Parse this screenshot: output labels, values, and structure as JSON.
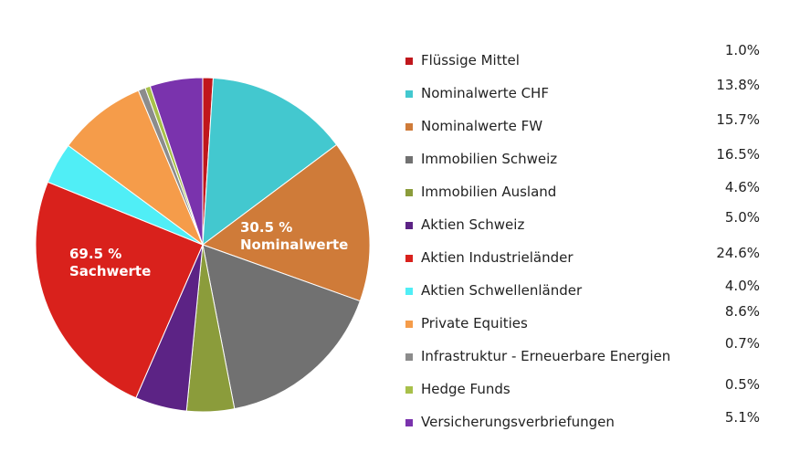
{
  "chart_data": {
    "type": "pie",
    "slices": [
      {
        "label": "Flüssige Mittel",
        "value_label": "1.0%",
        "value": 1.0,
        "color": "#c0171c"
      },
      {
        "label": "Nominalwerte CHF",
        "value_label": "13.8%",
        "value": 13.8,
        "color": "#43c8cf"
      },
      {
        "label": "Nominalwerte FW",
        "value_label": "15.7%",
        "value": 15.7,
        "color": "#cf7b39"
      },
      {
        "label": "Immobilien Schweiz",
        "value_label": "16.5%",
        "value": 16.5,
        "color": "#717171"
      },
      {
        "label": "Immobilien Ausland",
        "value_label": "4.6%",
        "value": 4.6,
        "color": "#8b9c3b"
      },
      {
        "label": "Aktien Schweiz",
        "value_label": "5.0%",
        "value": 5.0,
        "color": "#5c2385"
      },
      {
        "label": "Aktien Industrieländer",
        "value_label": "24.6%",
        "value": 24.6,
        "color": "#d9211c"
      },
      {
        "label": "Aktien Schwellenländer",
        "value_label": "4.0%",
        "value": 4.0,
        "color": "#50eef6"
      },
      {
        "label": "Private Equities",
        "value_label": "8.6%",
        "value": 8.6,
        "color": "#f59c4a"
      },
      {
        "label": "Infrastruktur - Erneuerbare Energien",
        "value_label": "0.7%",
        "value": 0.7,
        "color": "#8c8c8c"
      },
      {
        "label": "Hedge Funds",
        "value_label": "0.5%",
        "value": 0.5,
        "color": "#a8c04a"
      },
      {
        "label": "Versicherungsverbriefungen",
        "value_label": "5.1%",
        "value": 5.1,
        "color": "#7a33ad"
      }
    ],
    "annotations": [
      {
        "line1": "30.5 %",
        "line2": "Nominalwerte"
      },
      {
        "line1": "69.5 %",
        "line2": "Sachwerte"
      }
    ],
    "legend_position": "right"
  }
}
